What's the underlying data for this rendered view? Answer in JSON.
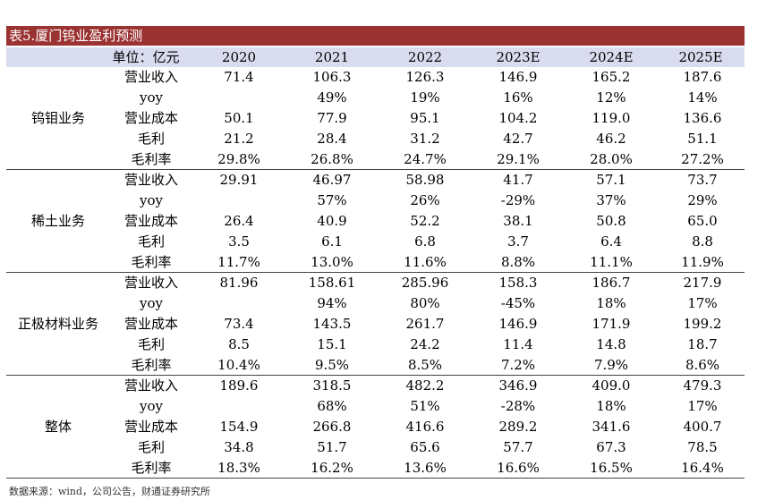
{
  "title": "表5.厦门钨业盈利预测",
  "header": {
    "unit": "单位：亿元",
    "years": [
      "2020",
      "2021",
      "2022",
      "2023E",
      "2024E",
      "2025E"
    ]
  },
  "groups": [
    {
      "name": "钨钼业务",
      "rows": [
        {
          "label": "营业收入",
          "values": [
            "71.4",
            "106.3",
            "126.3",
            "146.9",
            "165.2",
            "187.6"
          ]
        },
        {
          "label": "yoy",
          "values": [
            "",
            "49%",
            "19%",
            "16%",
            "12%",
            "14%"
          ]
        },
        {
          "label": "营业成本",
          "values": [
            "50.1",
            "77.9",
            "95.1",
            "104.2",
            "119.0",
            "136.6"
          ]
        },
        {
          "label": "毛利",
          "values": [
            "21.2",
            "28.4",
            "31.2",
            "42.7",
            "46.2",
            "51.1"
          ]
        },
        {
          "label": "毛利率",
          "values": [
            "29.8%",
            "26.8%",
            "24.7%",
            "29.1%",
            "28.0%",
            "27.2%"
          ]
        }
      ]
    },
    {
      "name": "稀土业务",
      "rows": [
        {
          "label": "营业收入",
          "values": [
            "29.91",
            "46.97",
            "58.98",
            "41.7",
            "57.1",
            "73.7"
          ]
        },
        {
          "label": "yoy",
          "values": [
            "",
            "57%",
            "26%",
            "-29%",
            "37%",
            "29%"
          ]
        },
        {
          "label": "营业成本",
          "values": [
            "26.4",
            "40.9",
            "52.2",
            "38.1",
            "50.8",
            "65.0"
          ]
        },
        {
          "label": "毛利",
          "values": [
            "3.5",
            "6.1",
            "6.8",
            "3.7",
            "6.4",
            "8.8"
          ]
        },
        {
          "label": "毛利率",
          "values": [
            "11.7%",
            "13.0%",
            "11.6%",
            "8.8%",
            "11.1%",
            "11.9%"
          ]
        }
      ]
    },
    {
      "name": "正极材料业务",
      "rows": [
        {
          "label": "营业收入",
          "values": [
            "81.96",
            "158.61",
            "285.96",
            "158.3",
            "186.7",
            "217.9"
          ]
        },
        {
          "label": "yoy",
          "values": [
            "",
            "94%",
            "80%",
            "-45%",
            "18%",
            "17%"
          ]
        },
        {
          "label": "营业成本",
          "values": [
            "73.4",
            "143.5",
            "261.7",
            "146.9",
            "171.9",
            "199.2"
          ]
        },
        {
          "label": "毛利",
          "values": [
            "8.5",
            "15.1",
            "24.2",
            "11.4",
            "14.8",
            "18.7"
          ]
        },
        {
          "label": "毛利率",
          "values": [
            "10.4%",
            "9.5%",
            "8.5%",
            "7.2%",
            "7.9%",
            "8.6%"
          ]
        }
      ]
    },
    {
      "name": "整体",
      "rows": [
        {
          "label": "营业收入",
          "values": [
            "189.6",
            "318.5",
            "482.2",
            "346.9",
            "409.0",
            "479.3"
          ]
        },
        {
          "label": "yoy",
          "values": [
            "",
            "68%",
            "51%",
            "-28%",
            "18%",
            "17%"
          ]
        },
        {
          "label": "营业成本",
          "values": [
            "154.9",
            "266.8",
            "416.6",
            "289.2",
            "341.6",
            "400.7"
          ]
        },
        {
          "label": "毛利",
          "values": [
            "34.8",
            "51.7",
            "65.6",
            "57.7",
            "67.3",
            "78.5"
          ]
        },
        {
          "label": "毛利率",
          "values": [
            "18.3%",
            "16.2%",
            "13.6%",
            "16.6%",
            "16.5%",
            "16.4%"
          ]
        }
      ]
    }
  ],
  "source": "数据来源：wind，公司公告，财通证券研究所"
}
